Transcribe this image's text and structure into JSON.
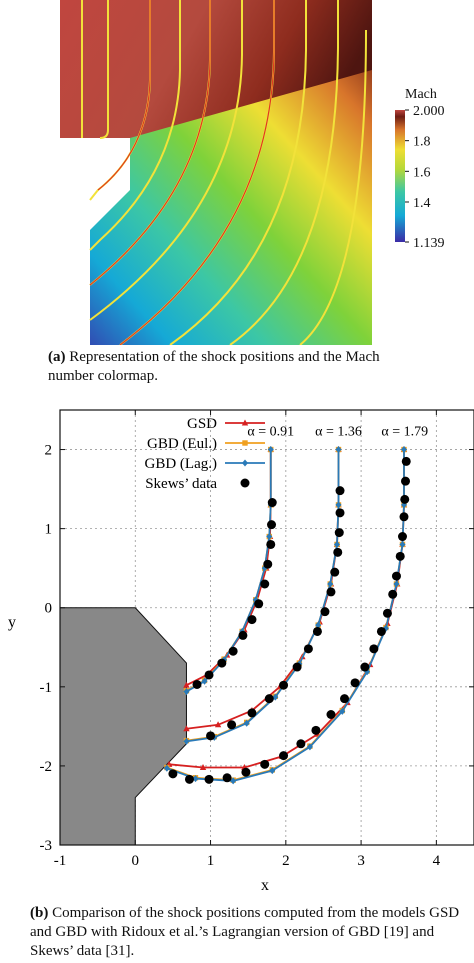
{
  "figure_a": {
    "colorbar": {
      "title": "Mach",
      "ticks": [
        {
          "value": 2.0,
          "label": "2.000"
        },
        {
          "value": 1.8,
          "label": "1.8"
        },
        {
          "value": 1.6,
          "label": "1.6"
        },
        {
          "value": 1.4,
          "label": "1.4"
        },
        {
          "value": 1.139,
          "label": "1.139"
        }
      ],
      "colors": [
        "#3b2ba6",
        "#15a9d6",
        "#3cc7a5",
        "#7fd23a",
        "#eede34",
        "#d8752b",
        "#6e1d14",
        "#c0463f"
      ]
    },
    "caption": {
      "label": "(a)",
      "text": "Representation of the shock positions and the Mach number colormap."
    }
  },
  "chart_data": {
    "type": "line",
    "xlabel": "x",
    "ylabel": "y",
    "xlim": [
      -1,
      4.5
    ],
    "ylim": [
      -3,
      2.5
    ],
    "xticks": [
      -1,
      0,
      1,
      2,
      3,
      4
    ],
    "yticks": [
      -3,
      -2,
      -1,
      0,
      1,
      2
    ],
    "xtick_labels": [
      "-1",
      "0",
      "1",
      "2",
      "3",
      "4"
    ],
    "ytick_labels": [
      "-3",
      "-2",
      "-1",
      "0",
      "1",
      "2"
    ],
    "grid": true,
    "legend_position": "top-left",
    "obstacle": [
      [
        -1,
        0
      ],
      [
        0,
        0
      ],
      [
        0.68,
        -0.7
      ],
      [
        0.68,
        -1.72
      ],
      [
        0,
        -2.4
      ],
      [
        0,
        -3
      ],
      [
        -1,
        -3
      ]
    ],
    "annotations": [
      {
        "text": "α = 0.91",
        "x": 1.8,
        "y": 2.18
      },
      {
        "text": "α = 1.36",
        "x": 2.7,
        "y": 2.18
      },
      {
        "text": "α = 1.79",
        "x": 3.58,
        "y": 2.18
      }
    ],
    "series": [
      {
        "name": "GSD",
        "color": "#d62020",
        "marker": "triangle",
        "curves": [
          [
            [
              1.8,
              2.0
            ],
            [
              1.8,
              1.3
            ],
            [
              1.79,
              0.9
            ],
            [
              1.74,
              0.5
            ],
            [
              1.62,
              0.1
            ],
            [
              1.45,
              -0.28
            ],
            [
              1.22,
              -0.6
            ],
            [
              0.95,
              -0.85
            ],
            [
              0.68,
              -0.98
            ]
          ],
          [
            [
              2.7,
              2.0
            ],
            [
              2.7,
              1.3
            ],
            [
              2.68,
              0.8
            ],
            [
              2.6,
              0.3
            ],
            [
              2.45,
              -0.18
            ],
            [
              2.22,
              -0.62
            ],
            [
              1.92,
              -1.0
            ],
            [
              1.55,
              -1.3
            ],
            [
              1.1,
              -1.48
            ],
            [
              0.68,
              -1.53
            ]
          ],
          [
            [
              3.57,
              2.0
            ],
            [
              3.57,
              1.3
            ],
            [
              3.55,
              0.8
            ],
            [
              3.48,
              0.3
            ],
            [
              3.35,
              -0.2
            ],
            [
              3.12,
              -0.72
            ],
            [
              2.82,
              -1.2
            ],
            [
              2.42,
              -1.6
            ],
            [
              1.95,
              -1.88
            ],
            [
              1.45,
              -2.02
            ],
            [
              0.9,
              -2.02
            ],
            [
              0.45,
              -1.98
            ]
          ]
        ]
      },
      {
        "name": "GBD (Eul.)",
        "color": "#f0a020",
        "marker": "square",
        "curves": [
          [
            [
              1.8,
              2.0
            ],
            [
              1.8,
              1.3
            ],
            [
              1.78,
              0.9
            ],
            [
              1.72,
              0.5
            ],
            [
              1.6,
              0.1
            ],
            [
              1.42,
              -0.3
            ],
            [
              1.18,
              -0.65
            ],
            [
              0.92,
              -0.92
            ],
            [
              0.68,
              -1.05
            ]
          ],
          [
            [
              2.7,
              2.0
            ],
            [
              2.7,
              1.3
            ],
            [
              2.68,
              0.8
            ],
            [
              2.59,
              0.3
            ],
            [
              2.43,
              -0.22
            ],
            [
              2.18,
              -0.7
            ],
            [
              1.86,
              -1.12
            ],
            [
              1.48,
              -1.45
            ],
            [
              1.05,
              -1.63
            ],
            [
              0.68,
              -1.68
            ]
          ],
          [
            [
              3.57,
              2.0
            ],
            [
              3.57,
              1.3
            ],
            [
              3.55,
              0.8
            ],
            [
              3.47,
              0.3
            ],
            [
              3.33,
              -0.25
            ],
            [
              3.08,
              -0.8
            ],
            [
              2.75,
              -1.3
            ],
            [
              2.32,
              -1.75
            ],
            [
              1.82,
              -2.05
            ],
            [
              1.3,
              -2.18
            ],
            [
              0.8,
              -2.15
            ],
            [
              0.42,
              -2.02
            ]
          ]
        ]
      },
      {
        "name": "GBD (Lag.)",
        "color": "#2a7ab8",
        "marker": "diamond",
        "curves": [
          [
            [
              1.8,
              2.0
            ],
            [
              1.8,
              1.3
            ],
            [
              1.78,
              0.9
            ],
            [
              1.72,
              0.5
            ],
            [
              1.6,
              0.1
            ],
            [
              1.42,
              -0.3
            ],
            [
              1.18,
              -0.66
            ],
            [
              0.92,
              -0.93
            ],
            [
              0.68,
              -1.06
            ]
          ],
          [
            [
              2.7,
              2.0
            ],
            [
              2.7,
              1.3
            ],
            [
              2.68,
              0.8
            ],
            [
              2.59,
              0.3
            ],
            [
              2.43,
              -0.22
            ],
            [
              2.18,
              -0.71
            ],
            [
              1.86,
              -1.13
            ],
            [
              1.48,
              -1.46
            ],
            [
              1.05,
              -1.64
            ],
            [
              0.68,
              -1.69
            ]
          ],
          [
            [
              3.57,
              2.0
            ],
            [
              3.57,
              1.3
            ],
            [
              3.55,
              0.8
            ],
            [
              3.47,
              0.3
            ],
            [
              3.33,
              -0.26
            ],
            [
              3.08,
              -0.81
            ],
            [
              2.75,
              -1.31
            ],
            [
              2.32,
              -1.76
            ],
            [
              1.82,
              -2.06
            ],
            [
              1.3,
              -2.19
            ],
            [
              0.8,
              -2.16
            ],
            [
              0.42,
              -2.03
            ]
          ]
        ]
      },
      {
        "name": "Skews’ data",
        "color": "#000000",
        "marker": "circle",
        "points": [
          [
            1.82,
            1.33
          ],
          [
            1.81,
            1.05
          ],
          [
            1.8,
            0.8
          ],
          [
            1.76,
            0.55
          ],
          [
            1.72,
            0.3
          ],
          [
            1.64,
            0.05
          ],
          [
            1.55,
            -0.15
          ],
          [
            1.43,
            -0.35
          ],
          [
            1.3,
            -0.55
          ],
          [
            1.15,
            -0.7
          ],
          [
            0.98,
            -0.85
          ],
          [
            0.82,
            -0.97
          ],
          [
            2.72,
            1.48
          ],
          [
            2.72,
            1.2
          ],
          [
            2.71,
            0.95
          ],
          [
            2.69,
            0.7
          ],
          [
            2.65,
            0.45
          ],
          [
            2.6,
            0.2
          ],
          [
            2.52,
            -0.05
          ],
          [
            2.42,
            -0.3
          ],
          [
            2.3,
            -0.52
          ],
          [
            2.15,
            -0.75
          ],
          [
            1.97,
            -0.98
          ],
          [
            1.78,
            -1.15
          ],
          [
            1.55,
            -1.33
          ],
          [
            1.28,
            -1.48
          ],
          [
            1.0,
            -1.62
          ],
          [
            3.6,
            1.85
          ],
          [
            3.59,
            1.6
          ],
          [
            3.58,
            1.37
          ],
          [
            3.57,
            1.15
          ],
          [
            3.55,
            0.9
          ],
          [
            3.52,
            0.65
          ],
          [
            3.47,
            0.4
          ],
          [
            3.42,
            0.17
          ],
          [
            3.35,
            -0.07
          ],
          [
            3.27,
            -0.3
          ],
          [
            3.17,
            -0.52
          ],
          [
            3.05,
            -0.75
          ],
          [
            2.92,
            -0.95
          ],
          [
            2.78,
            -1.15
          ],
          [
            2.6,
            -1.35
          ],
          [
            2.4,
            -1.55
          ],
          [
            2.2,
            -1.72
          ],
          [
            1.97,
            -1.87
          ],
          [
            1.72,
            -1.98
          ],
          [
            1.47,
            -2.08
          ],
          [
            1.22,
            -2.15
          ],
          [
            0.98,
            -2.17
          ],
          [
            0.72,
            -2.17
          ],
          [
            0.5,
            -2.1
          ]
        ]
      }
    ]
  },
  "figure_b": {
    "caption": {
      "label": "(b)",
      "text": "Comparison of the shock positions computed from the models GSD and GBD with Ridoux et al.’s Lagrangian version of GBD [19] and Skews’ data [31]."
    }
  }
}
